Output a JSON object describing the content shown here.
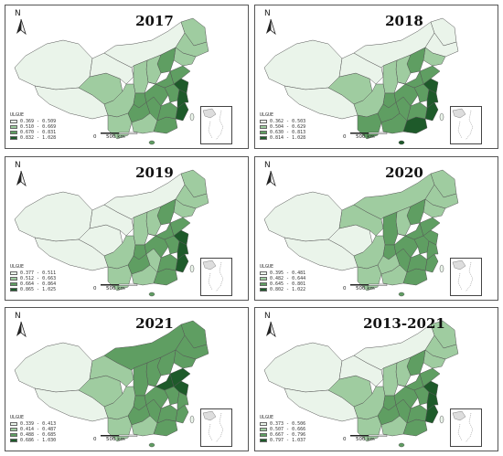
{
  "colors": {
    "c1": "#eaf4ea",
    "c2": "#9fcca0",
    "c3": "#5f9e62",
    "c4": "#1e5a2a",
    "outline": "#555555"
  },
  "map_labels": {
    "compass": "N",
    "legend_title": "ULGUE",
    "scale_zero": "0",
    "scale_km": "500 km"
  },
  "panels": [
    {
      "title": "2017",
      "legend": [
        "0.369 - 0.509",
        "0.510 - 0.669",
        "0.670 - 0.831",
        "0.832 - 1.028"
      ],
      "regions": {
        "xj": 1,
        "xz": 1,
        "qh": 2,
        "gs": 1,
        "nm": 1,
        "hlj": 2,
        "jl": 2,
        "ln": 2,
        "hb": 3,
        "sx": 2,
        "sc": 2,
        "yn": 2,
        "gz": 3,
        "gx": 2,
        "gd": 3,
        "fj": 4,
        "jx": 3,
        "hn": 3,
        "hub": 3,
        "ah": 3,
        "js": 4,
        "sd": 3,
        "zj": 4,
        "cq": 3,
        "sn": 2,
        "hen": 3
      }
    },
    {
      "title": "2018",
      "legend": [
        "0.362 - 0.503",
        "0.504 - 0.629",
        "0.630 - 0.813",
        "0.814 - 1.028"
      ],
      "regions": {
        "xj": 1,
        "xz": 1,
        "qh": 2,
        "gs": 1,
        "nm": 1,
        "hlj": 1,
        "jl": 1,
        "ln": 2,
        "hb": 3,
        "sx": 2,
        "sc": 2,
        "yn": 3,
        "gz": 3,
        "gx": 3,
        "gd": 4,
        "fj": 4,
        "jx": 3,
        "hn": 3,
        "hub": 3,
        "ah": 3,
        "js": 4,
        "sd": 3,
        "zj": 4,
        "cq": 3,
        "sn": 2,
        "hen": 3
      }
    },
    {
      "title": "2019",
      "legend": [
        "0.377 - 0.511",
        "0.512 - 0.663",
        "0.664 - 0.864",
        "0.865 - 1.025"
      ],
      "regions": {
        "xj": 1,
        "xz": 1,
        "qh": 1,
        "gs": 1,
        "nm": 1,
        "hlj": 2,
        "jl": 2,
        "ln": 2,
        "hb": 3,
        "sx": 2,
        "sc": 2,
        "yn": 2,
        "gz": 3,
        "gx": 2,
        "gd": 3,
        "fj": 4,
        "jx": 3,
        "hn": 2,
        "hub": 3,
        "ah": 3,
        "js": 4,
        "sd": 3,
        "zj": 4,
        "cq": 3,
        "sn": 2,
        "hen": 3
      }
    },
    {
      "title": "2020",
      "legend": [
        "0.395 - 0.481",
        "0.482 - 0.644",
        "0.645 - 0.801",
        "0.802 - 1.022"
      ],
      "regions": {
        "xj": 1,
        "xz": 1,
        "qh": 1,
        "gs": 2,
        "nm": 2,
        "hlj": 2,
        "jl": 2,
        "ln": 2,
        "hb": 3,
        "sx": 2,
        "sc": 2,
        "yn": 2,
        "gz": 2,
        "gx": 2,
        "gd": 3,
        "fj": 3,
        "jx": 3,
        "hn": 3,
        "hub": 3,
        "ah": 3,
        "js": 3,
        "sd": 3,
        "zj": 3,
        "cq": 3,
        "sn": 3,
        "hen": 3
      }
    },
    {
      "title": "2021",
      "legend": [
        "0.339 - 0.413",
        "0.414 - 0.487",
        "0.488 - 0.685",
        "0.686 - 1.030"
      ],
      "regions": {
        "xj": 1,
        "xz": 1,
        "qh": 2,
        "gs": 2,
        "nm": 3,
        "hlj": 3,
        "jl": 3,
        "ln": 3,
        "hb": 3,
        "sx": 3,
        "sc": 2,
        "yn": 2,
        "gz": 3,
        "gx": 2,
        "gd": 3,
        "fj": 3,
        "jx": 3,
        "hn": 3,
        "hub": 3,
        "ah": 3,
        "js": 4,
        "sd": 4,
        "zj": 3,
        "cq": 3,
        "sn": 3,
        "hen": 4
      }
    },
    {
      "title": "2013-2021",
      "legend": [
        "0.373 - 0.506",
        "0.507 - 0.666",
        "0.667 - 0.796",
        "0.797 - 1.037"
      ],
      "regions": {
        "xj": 1,
        "xz": 1,
        "qh": 2,
        "gs": 1,
        "nm": 1,
        "hlj": 2,
        "jl": 2,
        "ln": 2,
        "hb": 3,
        "sx": 2,
        "sc": 2,
        "yn": 2,
        "gz": 3,
        "gx": 2,
        "gd": 3,
        "fj": 4,
        "jx": 3,
        "hn": 3,
        "hub": 3,
        "ah": 3,
        "js": 4,
        "sd": 3,
        "zj": 4,
        "cq": 3,
        "sn": 2,
        "hen": 3
      }
    }
  ]
}
